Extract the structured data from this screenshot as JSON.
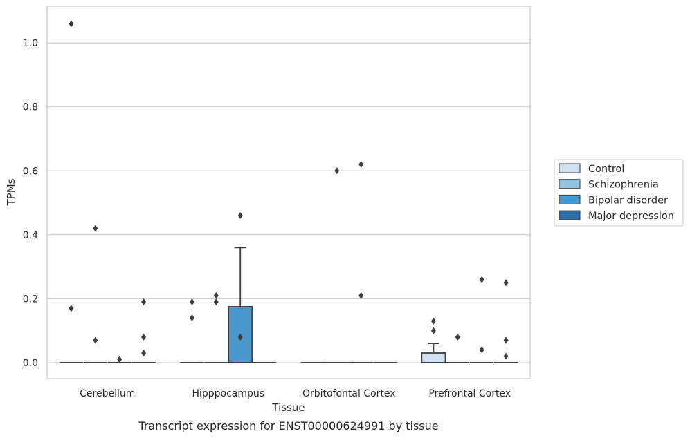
{
  "chart_data": {
    "type": "box",
    "caption": "Transcript expression for ENST00000624991 by tissue",
    "xlabel": "Tissue",
    "ylabel": "TPMs",
    "ylim": [
      -0.05,
      1.115
    ],
    "yticks": [
      0.0,
      0.2,
      0.4,
      0.6,
      0.8,
      1.0
    ],
    "ytick_labels": [
      "0.0",
      "0.2",
      "0.4",
      "0.6",
      "0.8",
      "1.0"
    ],
    "grid": true,
    "legend_position": "right",
    "categories": [
      "Cerebellum",
      "Hipppocampus",
      "Orbitofontal Cortex",
      "Prefrontal Cortex"
    ],
    "series": [
      {
        "name": "Control",
        "color": "#cfe1f2",
        "boxes": [
          {
            "q1": 0,
            "median": 0,
            "q3": 0,
            "whislo": 0,
            "whishi": 0,
            "fliers": [
              1.06,
              0.17
            ]
          },
          {
            "q1": 0,
            "median": 0,
            "q3": 0,
            "whislo": 0,
            "whishi": 0,
            "fliers": [
              0.19,
              0.14
            ]
          },
          {
            "q1": 0,
            "median": 0,
            "q3": 0,
            "whislo": 0,
            "whishi": 0,
            "fliers": []
          },
          {
            "q1": 0,
            "median": 0,
            "q3": 0.03,
            "whislo": 0,
            "whishi": 0.06,
            "fliers": [
              0.13,
              0.1
            ]
          }
        ]
      },
      {
        "name": "Schizophrenia",
        "color": "#93c4de",
        "boxes": [
          {
            "q1": 0,
            "median": 0,
            "q3": 0,
            "whislo": 0,
            "whishi": 0,
            "fliers": [
              0.42,
              0.07
            ]
          },
          {
            "q1": 0,
            "median": 0,
            "q3": 0,
            "whislo": 0,
            "whishi": 0,
            "fliers": [
              0.21,
              0.19
            ]
          },
          {
            "q1": 0,
            "median": 0,
            "q3": 0,
            "whislo": 0,
            "whishi": 0,
            "fliers": [
              0.6
            ]
          },
          {
            "q1": 0,
            "median": 0,
            "q3": 0,
            "whislo": 0,
            "whishi": 0,
            "fliers": [
              0.08
            ]
          }
        ]
      },
      {
        "name": "Bipolar disorder",
        "color": "#4a98c9",
        "boxes": [
          {
            "q1": 0,
            "median": 0,
            "q3": 0,
            "whislo": 0,
            "whishi": 0,
            "fliers": [
              0.01
            ]
          },
          {
            "q1": 0,
            "median": 0,
            "q3": 0.175,
            "whislo": 0,
            "whishi": 0.36,
            "fliers": [
              0.46,
              0.08
            ]
          },
          {
            "q1": 0,
            "median": 0,
            "q3": 0,
            "whislo": 0,
            "whishi": 0,
            "fliers": [
              0.62,
              0.21
            ]
          },
          {
            "q1": 0,
            "median": 0,
            "q3": 0,
            "whislo": 0,
            "whishi": 0,
            "fliers": [
              0.26,
              0.04
            ]
          }
        ]
      },
      {
        "name": "Major depression",
        "color": "#2e6fae",
        "boxes": [
          {
            "q1": 0,
            "median": 0,
            "q3": 0,
            "whislo": 0,
            "whishi": 0,
            "fliers": [
              0.19,
              0.08,
              0.03
            ]
          },
          {
            "q1": 0,
            "median": 0,
            "q3": 0,
            "whislo": 0,
            "whishi": 0,
            "fliers": []
          },
          {
            "q1": 0,
            "median": 0,
            "q3": 0,
            "whislo": 0,
            "whishi": 0,
            "fliers": []
          },
          {
            "q1": 0,
            "median": 0,
            "q3": 0,
            "whislo": 0,
            "whishi": 0,
            "fliers": [
              0.25,
              0.07,
              0.02
            ]
          }
        ]
      }
    ]
  }
}
